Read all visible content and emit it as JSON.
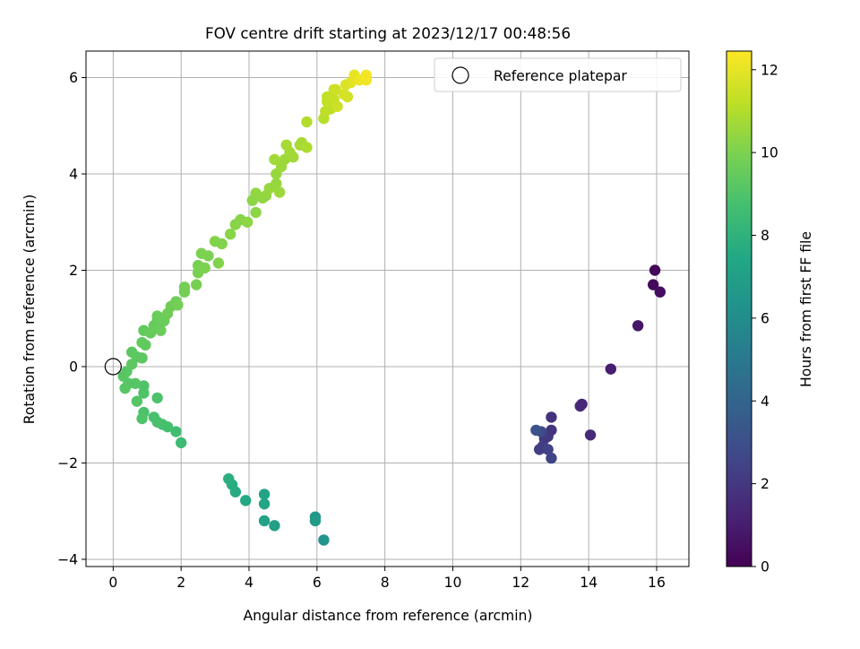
{
  "chart_data": {
    "type": "scatter",
    "title": "FOV centre drift starting at 2023/12/17 00:48:56",
    "xlabel": "Angular distance from reference (arcmin)",
    "ylabel": "Rotation from reference (arcmin)",
    "xlim": [
      -0.8,
      16.95
    ],
    "ylim": [
      -4.15,
      6.55
    ],
    "xticks": [
      "0",
      "2",
      "4",
      "6",
      "8",
      "10",
      "12",
      "14",
      "16"
    ],
    "xtick_values": [
      0,
      2,
      4,
      6,
      8,
      10,
      12,
      14,
      16
    ],
    "yticks": [
      "−4",
      "−2",
      "0",
      "2",
      "4",
      "6"
    ],
    "ytick_values": [
      -4,
      -2,
      0,
      2,
      4,
      6
    ],
    "grid": true,
    "legend": {
      "placement": "top-right",
      "entries": [
        "Reference platepar"
      ]
    },
    "reference_point": {
      "x": 0,
      "y": 0
    },
    "colorbar": {
      "label": "Hours from first FF file",
      "range": [
        0,
        12.45
      ],
      "ticks": [
        "0",
        "2",
        "4",
        "6",
        "8",
        "10",
        "12"
      ],
      "tick_values": [
        0,
        2,
        4,
        6,
        8,
        10,
        12
      ],
      "colormap": "viridis"
    },
    "points": [
      {
        "x": 15.95,
        "y": 2.0,
        "h": 0.2
      },
      {
        "x": 15.9,
        "y": 1.7,
        "h": 0.3
      },
      {
        "x": 16.1,
        "y": 1.55,
        "h": 0.4
      },
      {
        "x": 15.45,
        "y": 0.85,
        "h": 0.7
      },
      {
        "x": 14.65,
        "y": -0.05,
        "h": 1.0
      },
      {
        "x": 13.8,
        "y": -0.78,
        "h": 1.3
      },
      {
        "x": 13.75,
        "y": -0.82,
        "h": 1.4
      },
      {
        "x": 14.05,
        "y": -1.42,
        "h": 1.5
      },
      {
        "x": 12.9,
        "y": -1.05,
        "h": 1.8
      },
      {
        "x": 12.9,
        "y": -1.32,
        "h": 1.9
      },
      {
        "x": 12.8,
        "y": -1.45,
        "h": 2.0
      },
      {
        "x": 12.7,
        "y": -1.5,
        "h": 2.1
      },
      {
        "x": 12.65,
        "y": -1.65,
        "h": 2.2
      },
      {
        "x": 12.55,
        "y": -1.72,
        "h": 2.3
      },
      {
        "x": 12.8,
        "y": -1.72,
        "h": 2.4
      },
      {
        "x": 12.9,
        "y": -1.9,
        "h": 2.5
      },
      {
        "x": 12.6,
        "y": -1.35,
        "h": 2.8
      },
      {
        "x": 12.45,
        "y": -1.32,
        "h": 3.2
      },
      {
        "x": 6.2,
        "y": -3.6,
        "h": 6.4
      },
      {
        "x": 5.95,
        "y": -3.12,
        "h": 6.6
      },
      {
        "x": 5.95,
        "y": -3.2,
        "h": 6.7
      },
      {
        "x": 4.75,
        "y": -3.3,
        "h": 7.0
      },
      {
        "x": 4.45,
        "y": -3.2,
        "h": 7.1
      },
      {
        "x": 4.45,
        "y": -2.65,
        "h": 7.2
      },
      {
        "x": 4.45,
        "y": -2.85,
        "h": 7.3
      },
      {
        "x": 3.9,
        "y": -2.78,
        "h": 7.5
      },
      {
        "x": 3.6,
        "y": -2.6,
        "h": 7.6
      },
      {
        "x": 3.5,
        "y": -2.45,
        "h": 7.7
      },
      {
        "x": 3.4,
        "y": -2.33,
        "h": 7.8
      },
      {
        "x": 2.0,
        "y": -1.58,
        "h": 8.5
      },
      {
        "x": 1.85,
        "y": -1.35,
        "h": 8.6
      },
      {
        "x": 1.6,
        "y": -1.25,
        "h": 8.7
      },
      {
        "x": 1.45,
        "y": -1.2,
        "h": 8.7
      },
      {
        "x": 1.3,
        "y": -1.15,
        "h": 8.8
      },
      {
        "x": 1.2,
        "y": -1.05,
        "h": 8.8
      },
      {
        "x": 1.3,
        "y": -0.65,
        "h": 8.9
      },
      {
        "x": 0.9,
        "y": -0.95,
        "h": 8.9
      },
      {
        "x": 0.85,
        "y": -1.08,
        "h": 9.0
      },
      {
        "x": 0.9,
        "y": -0.55,
        "h": 9.0
      },
      {
        "x": 0.9,
        "y": -0.4,
        "h": 9.0
      },
      {
        "x": 0.7,
        "y": -0.72,
        "h": 9.1
      },
      {
        "x": 0.65,
        "y": -0.35,
        "h": 9.1
      },
      {
        "x": 0.45,
        "y": -0.35,
        "h": 9.1
      },
      {
        "x": 0.35,
        "y": -0.45,
        "h": 9.2
      },
      {
        "x": 0.3,
        "y": -0.2,
        "h": 9.2
      },
      {
        "x": 0.4,
        "y": -0.1,
        "h": 9.2
      },
      {
        "x": 0.55,
        "y": 0.05,
        "h": 9.3
      },
      {
        "x": 0.7,
        "y": 0.2,
        "h": 9.3
      },
      {
        "x": 0.85,
        "y": 0.18,
        "h": 9.3
      },
      {
        "x": 0.55,
        "y": 0.3,
        "h": 9.3
      },
      {
        "x": 0.95,
        "y": 0.45,
        "h": 9.4
      },
      {
        "x": 0.85,
        "y": 0.5,
        "h": 9.4
      },
      {
        "x": 0.9,
        "y": 0.75,
        "h": 9.4
      },
      {
        "x": 1.1,
        "y": 0.7,
        "h": 9.5
      },
      {
        "x": 1.2,
        "y": 0.85,
        "h": 9.5
      },
      {
        "x": 1.3,
        "y": 0.95,
        "h": 9.5
      },
      {
        "x": 1.4,
        "y": 0.75,
        "h": 9.6
      },
      {
        "x": 1.3,
        "y": 1.05,
        "h": 9.6
      },
      {
        "x": 1.5,
        "y": 0.95,
        "h": 9.6
      },
      {
        "x": 1.6,
        "y": 1.1,
        "h": 9.7
      },
      {
        "x": 1.7,
        "y": 1.25,
        "h": 9.7
      },
      {
        "x": 1.85,
        "y": 1.35,
        "h": 9.7
      },
      {
        "x": 1.9,
        "y": 1.28,
        "h": 9.8
      },
      {
        "x": 2.1,
        "y": 1.55,
        "h": 9.8
      },
      {
        "x": 2.1,
        "y": 1.65,
        "h": 9.8
      },
      {
        "x": 2.45,
        "y": 1.7,
        "h": 9.9
      },
      {
        "x": 2.5,
        "y": 1.95,
        "h": 9.9
      },
      {
        "x": 2.5,
        "y": 2.1,
        "h": 9.9
      },
      {
        "x": 2.7,
        "y": 2.05,
        "h": 10.0
      },
      {
        "x": 2.8,
        "y": 2.3,
        "h": 10.0
      },
      {
        "x": 2.6,
        "y": 2.35,
        "h": 10.0
      },
      {
        "x": 3.1,
        "y": 2.15,
        "h": 10.1
      },
      {
        "x": 3.0,
        "y": 2.6,
        "h": 10.1
      },
      {
        "x": 3.2,
        "y": 2.55,
        "h": 10.1
      },
      {
        "x": 3.45,
        "y": 2.75,
        "h": 10.2
      },
      {
        "x": 3.6,
        "y": 2.95,
        "h": 10.2
      },
      {
        "x": 3.75,
        "y": 3.05,
        "h": 10.2
      },
      {
        "x": 3.95,
        "y": 3.0,
        "h": 10.3
      },
      {
        "x": 4.2,
        "y": 3.2,
        "h": 10.3
      },
      {
        "x": 4.1,
        "y": 3.45,
        "h": 10.3
      },
      {
        "x": 4.2,
        "y": 3.6,
        "h": 10.4
      },
      {
        "x": 4.4,
        "y": 3.5,
        "h": 10.4
      },
      {
        "x": 4.5,
        "y": 3.55,
        "h": 10.4
      },
      {
        "x": 4.6,
        "y": 3.7,
        "h": 10.5
      },
      {
        "x": 4.8,
        "y": 3.8,
        "h": 10.5
      },
      {
        "x": 4.8,
        "y": 4.0,
        "h": 10.5
      },
      {
        "x": 4.9,
        "y": 3.62,
        "h": 10.6
      },
      {
        "x": 4.95,
        "y": 4.15,
        "h": 10.6
      },
      {
        "x": 5.05,
        "y": 4.3,
        "h": 10.6
      },
      {
        "x": 5.2,
        "y": 4.45,
        "h": 10.7
      },
      {
        "x": 5.3,
        "y": 4.35,
        "h": 10.7
      },
      {
        "x": 4.75,
        "y": 4.3,
        "h": 10.7
      },
      {
        "x": 5.1,
        "y": 4.6,
        "h": 10.8
      },
      {
        "x": 5.55,
        "y": 4.65,
        "h": 10.8
      },
      {
        "x": 5.5,
        "y": 4.6,
        "h": 10.8
      },
      {
        "x": 5.7,
        "y": 4.55,
        "h": 10.9
      },
      {
        "x": 5.7,
        "y": 5.08,
        "h": 11.0
      },
      {
        "x": 6.2,
        "y": 5.15,
        "h": 11.1
      },
      {
        "x": 6.25,
        "y": 5.3,
        "h": 11.2
      },
      {
        "x": 6.4,
        "y": 5.35,
        "h": 11.2
      },
      {
        "x": 6.3,
        "y": 5.5,
        "h": 11.3
      },
      {
        "x": 6.3,
        "y": 5.6,
        "h": 11.3
      },
      {
        "x": 6.5,
        "y": 5.55,
        "h": 11.4
      },
      {
        "x": 6.5,
        "y": 5.75,
        "h": 11.4
      },
      {
        "x": 6.55,
        "y": 5.75,
        "h": 11.5
      },
      {
        "x": 6.6,
        "y": 5.4,
        "h": 11.5
      },
      {
        "x": 6.9,
        "y": 5.6,
        "h": 11.6
      },
      {
        "x": 6.8,
        "y": 5.65,
        "h": 11.7
      },
      {
        "x": 6.85,
        "y": 5.85,
        "h": 11.8
      },
      {
        "x": 7.0,
        "y": 5.9,
        "h": 11.9
      },
      {
        "x": 7.1,
        "y": 6.05,
        "h": 12.0
      },
      {
        "x": 7.25,
        "y": 5.95,
        "h": 12.1
      },
      {
        "x": 7.45,
        "y": 5.95,
        "h": 12.2
      },
      {
        "x": 7.45,
        "y": 6.05,
        "h": 12.3
      }
    ]
  }
}
